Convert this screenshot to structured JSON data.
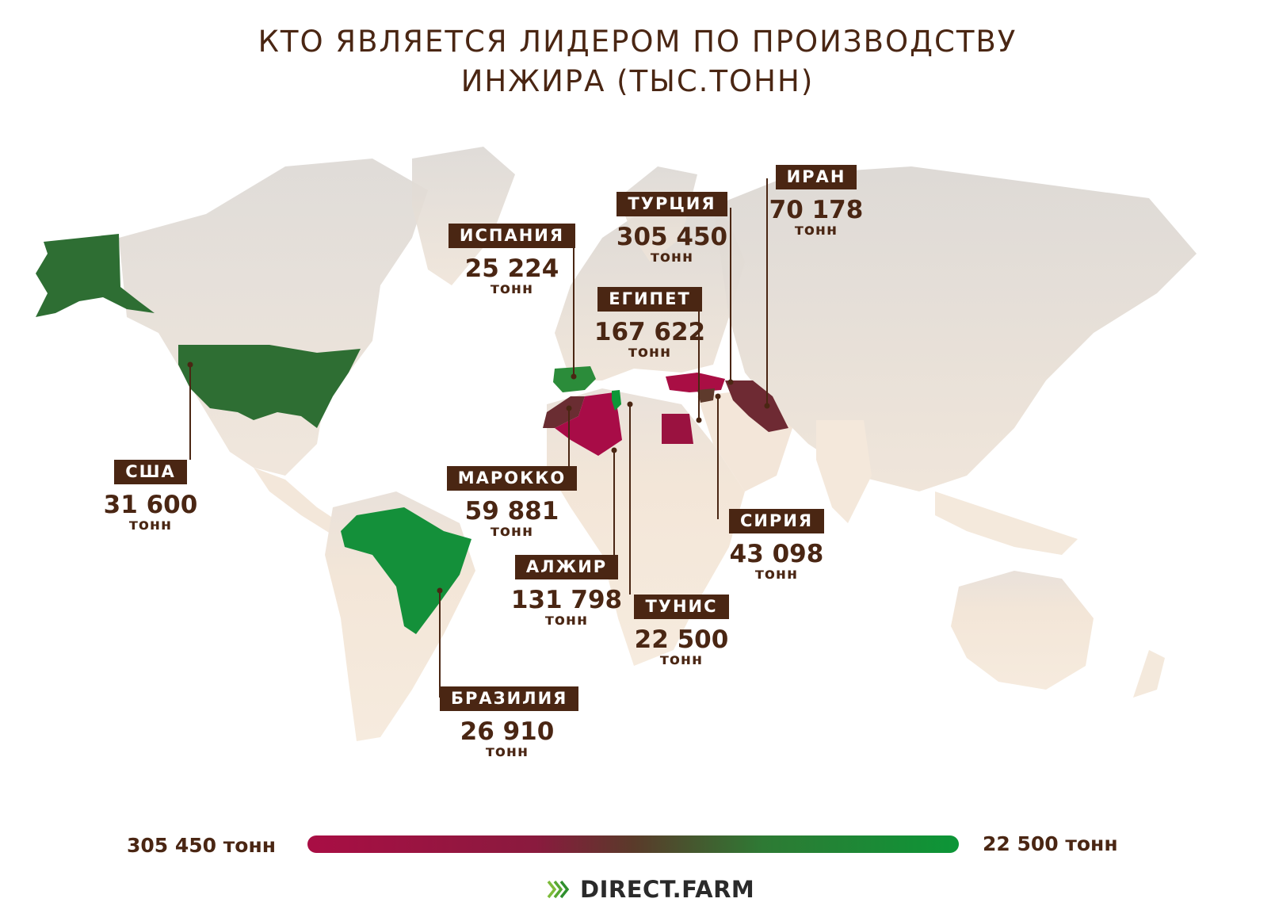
{
  "title": {
    "line1": "КТО ЯВЛЯЕТСЯ ЛИДЕРОМ ПО ПРОИЗВОДСТВУ",
    "line2": "ИНЖИРА (ТЫС.ТОНН)"
  },
  "countries": [
    {
      "id": "usa",
      "name": "США",
      "value": "31 600",
      "unit": "тонн",
      "amount": 31600,
      "color": "#2e6e33"
    },
    {
      "id": "spain",
      "name": "ИСПАНИЯ",
      "value": "25 224",
      "unit": "тонн",
      "amount": 25224,
      "color": "#2b8c3a"
    },
    {
      "id": "turkey",
      "name": "ТУРЦИЯ",
      "value": "305 450",
      "unit": "тонн",
      "amount": 305450,
      "color": "#a90e44"
    },
    {
      "id": "iran",
      "name": "ИРАН",
      "value": "70 178",
      "unit": "тонн",
      "amount": 70178,
      "color": "#6e2a33"
    },
    {
      "id": "egypt",
      "name": "ЕГИПЕТ",
      "value": "167 622",
      "unit": "тонн",
      "amount": 167622,
      "color": "#9a1240"
    },
    {
      "id": "morocco",
      "name": "МАРОККО",
      "value": "59 881",
      "unit": "тонн",
      "amount": 59881,
      "color": "#6a2d32"
    },
    {
      "id": "algeria",
      "name": "АЛЖИР",
      "value": "131 798",
      "unit": "тонн",
      "amount": 131798,
      "color": "#a80c47"
    },
    {
      "id": "tunisia",
      "name": "ТУНИС",
      "value": "22 500",
      "unit": "тонн",
      "amount": 22500,
      "color": "#0c9637"
    },
    {
      "id": "syria",
      "name": "СИРИЯ",
      "value": "43 098",
      "unit": "тонн",
      "amount": 43098,
      "color": "#5e3a2c"
    },
    {
      "id": "brazil",
      "name": "БРАЗИЛИЯ",
      "value": "26 910",
      "unit": "тонн",
      "amount": 26910,
      "color": "#14903a"
    }
  ],
  "legend": {
    "max_label": "305 450 тонн",
    "min_label": "22 500 тонн",
    "gradient_start": "#a90e44",
    "gradient_end": "#0c9637"
  },
  "brand": {
    "name": "DIRECT.FARM",
    "icon": "chevrons-right-icon"
  },
  "colors": {
    "text": "#4a2613",
    "land": "#f2e4d6",
    "land_shade": "#d8d3cf"
  }
}
